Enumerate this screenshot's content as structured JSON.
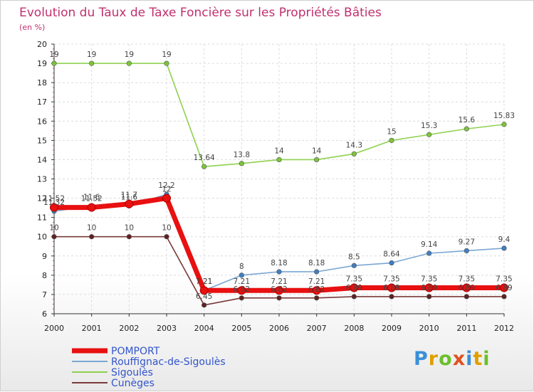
{
  "chart_data": {
    "type": "line",
    "title": "Evolution du Taux de Taxe Foncière sur les Propriétés Bâties",
    "subtitle": "(en %)",
    "x": [
      2000,
      2001,
      2002,
      2003,
      2004,
      2005,
      2006,
      2007,
      2008,
      2009,
      2010,
      2011,
      2012
    ],
    "ylim": [
      6,
      20
    ],
    "yticks": [
      6,
      7,
      8,
      9,
      10,
      11,
      12,
      13,
      14,
      15,
      16,
      17,
      18,
      19,
      20
    ],
    "series": [
      {
        "name": "Sigoulès",
        "color": "#8fd14f",
        "point_color": "#7dc43c",
        "values": [
          19,
          19,
          19,
          19,
          13.64,
          13.8,
          14,
          14,
          14.3,
          15,
          15.3,
          15.6,
          15.83
        ],
        "labels": [
          "19",
          "19",
          "19",
          "19",
          "13.64",
          "13.8",
          "14",
          "14",
          "14.3",
          "15",
          "15.3",
          "15.6",
          "15.83"
        ]
      },
      {
        "name": "Cunèges",
        "color": "#7a3a3a",
        "point_color": "#5e2222",
        "values": [
          10,
          10,
          10,
          10,
          6.45,
          6.82,
          6.82,
          6.82,
          6.89,
          6.89,
          6.89,
          6.89,
          6.89
        ],
        "labels": [
          "10",
          "10",
          "10",
          "10",
          "6.45",
          "6.82",
          "6.82",
          "6.82",
          "6.89",
          "6.89",
          "6.89",
          "6.89",
          "6.89"
        ]
      },
      {
        "name": "Rouffignac-de-Sigoulès",
        "color": "#7aa7d4",
        "point_color": "#3f7fc2",
        "values": [
          11.32,
          11.6,
          11.6,
          12.2,
          7.21,
          8,
          8.18,
          8.18,
          8.5,
          8.64,
          9.14,
          9.27,
          9.4
        ],
        "labels": [
          "11.32",
          "11.6",
          "11.6",
          "12.2",
          "7.21",
          "8",
          "8.18",
          "8.18",
          "8.5",
          "8.64",
          "9.14",
          "9.27",
          "9.4"
        ]
      },
      {
        "name": "POMPORT",
        "color": "#e81010",
        "point_color": "#e81010",
        "values": [
          11.52,
          11.52,
          11.7,
          12,
          7.21,
          7.21,
          7.21,
          7.21,
          7.35,
          7.35,
          7.35,
          7.35,
          7.35
        ],
        "labels": [
          "11.52",
          "11.52",
          "11.7",
          "12",
          "7.21",
          "7.21",
          "7.21",
          "7.21",
          "7.35",
          "7.35",
          "7.35",
          "7.35",
          "7.35"
        ]
      }
    ],
    "legend": {
      "placement": "bottom-left",
      "entries": [
        {
          "name": "POMPORT",
          "color": "#e81010"
        },
        {
          "name": "Rouffignac-de-Sigoulès",
          "color": "#7aa7d4"
        },
        {
          "name": "Sigoulès",
          "color": "#8fd14f"
        },
        {
          "name": "Cunèges",
          "color": "#7a3a3a"
        }
      ]
    }
  },
  "logo": {
    "letters": [
      "P",
      "r",
      "o",
      "x",
      "i",
      "t",
      "i"
    ],
    "colors": [
      "#3a8fd8",
      "#e0a000",
      "#6cbf2a",
      "#e05020",
      "#3a8fd8",
      "#e0a000",
      "#6cbf2a"
    ]
  }
}
